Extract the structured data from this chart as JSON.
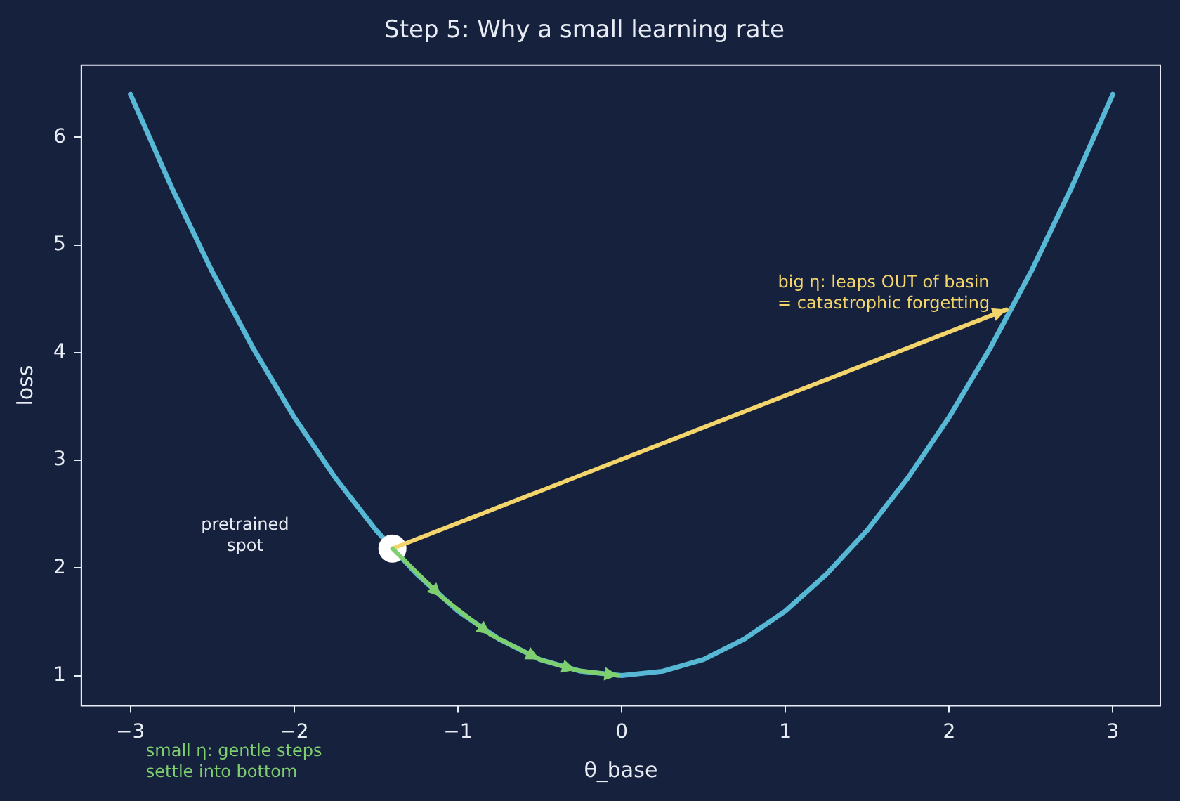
{
  "chart_data": {
    "type": "line",
    "title": "Step 5: Why a small learning rate",
    "xlabel": "θ_base",
    "ylabel": "loss",
    "xlim": [
      -3.3,
      3.29
    ],
    "xticks": [
      -3,
      -2,
      -1,
      0,
      1,
      2,
      3
    ],
    "ylim": [
      0.72,
      6.67
    ],
    "yticks": [
      1,
      2,
      3,
      4,
      5,
      6
    ],
    "grid": false,
    "legend": false,
    "series": [
      {
        "type": "line",
        "color": "#56b8d4",
        "marker": "none",
        "x": [
          -3,
          -2.75,
          -2.5,
          -2.25,
          -2,
          -1.75,
          -1.5,
          -1.25,
          -1,
          -0.75,
          -0.5,
          -0.25,
          0,
          0.25,
          0.5,
          0.75,
          1,
          1.25,
          1.5,
          1.75,
          2,
          2.25,
          2.5,
          2.75,
          3
        ],
        "values": [
          6.4,
          5.54,
          4.75,
          4.04,
          3.4,
          2.84,
          2.35,
          1.94,
          1.6,
          1.34,
          1.15,
          1.04,
          1.0,
          1.04,
          1.15,
          1.34,
          1.6,
          1.94,
          2.35,
          2.84,
          3.4,
          4.04,
          4.75,
          5.54,
          6.4
        ]
      },
      {
        "type": "scatter",
        "color": "#ffffff",
        "marker": "circle",
        "x": [
          -1.4
        ],
        "values": [
          2.18
        ]
      }
    ],
    "annotations": [
      "pretrained\nspot",
      "big η: leaps OUT of basin\n= catastrophic forgetting",
      "small η: gentle steps\nsettle into bottom"
    ]
  }
}
